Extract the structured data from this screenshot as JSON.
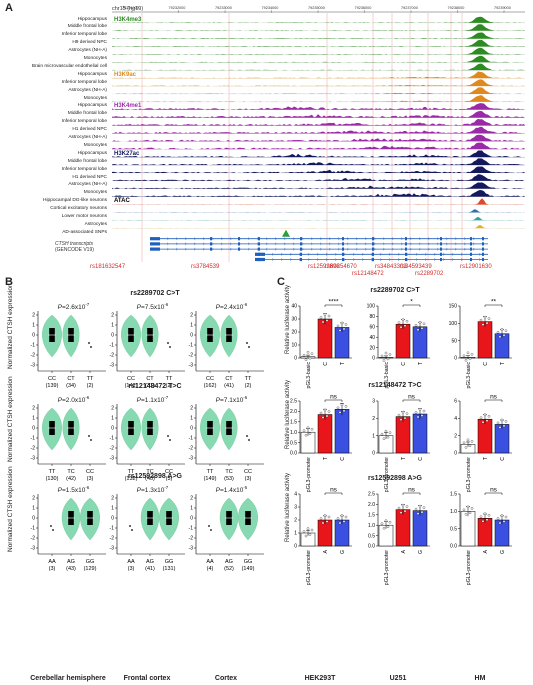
{
  "panelA": {
    "letter": "A",
    "locus": "chr15 (hg19)",
    "coords": [
      "79231000",
      "79232000",
      "79233000",
      "79234000",
      "79235000",
      "79236000",
      "79237000",
      "79238000",
      "79239000"
    ],
    "marks": [
      {
        "name": "H3K4me3",
        "color": "#2e8b22",
        "rows": [
          "Hippocampus",
          "Middle frontal lobe",
          "Inferior temporal lobe",
          "H9 derived NPC",
          "Astrocytes (NH-A)",
          "Monocytes",
          "Brain microvascular endothelial cell"
        ]
      },
      {
        "name": "H3K9ac",
        "color": "#e08a1e",
        "rows": [
          "Hippocampus",
          "Inferior temporal lobe",
          "Astrocytes (NH-A)",
          "Monocytes"
        ]
      },
      {
        "name": "H3K4me1",
        "color": "#9b2aa6",
        "rows": [
          "Hippocampus",
          "Middle frontal lobe",
          "Inferior temporal lobe",
          "H1 derived NPC",
          "Astrocytes (NH-A)",
          "Monocytes"
        ]
      },
      {
        "name": "H3K27ac",
        "color": "#14195e",
        "rows": [
          "Hippocampus",
          "Middle frontal lobe",
          "Inferior temporal lobe",
          "H1 derived NPC",
          "Astrocytes (NH-A)",
          "Monocytes"
        ]
      },
      {
        "name": "ATAC",
        "color": "#000000",
        "rows": [
          "Hippocampal DG-like neurons",
          "Cortical excitatory neurons",
          "Lower motor neurons",
          "Astrocytes"
        ]
      }
    ],
    "atac_colors": [
      "#e04a2a",
      "#2f6fb8",
      "#2aa8a0",
      "#e8b020"
    ],
    "snp_track": "AD-associated SNPs",
    "transcripts_label": [
      "CTSH transcripts",
      "(GENCODE V19)"
    ],
    "snps_row1": [
      "rs181632547",
      "rs3784539",
      "rs12592898",
      "rs60254670",
      "rs34843303",
      "rs34593439",
      "rs12901630"
    ],
    "snps_row2": [
      "rs12148472",
      "rs2289702"
    ]
  },
  "panelB": {
    "letter": "B",
    "ylabel": "Normalized CTSH expression",
    "columns": [
      "Cerebellar hemisphere",
      "Frontal cortex",
      "Cortex"
    ],
    "rows": [
      {
        "title": "rs2289702 C>T",
        "pvals": [
          "P=2.6x10",
          "P=7.5x10",
          "P=2.4x10"
        ],
        "exps": [
          "-7",
          "-6",
          "-6"
        ],
        "genotypes": [
          [
            "CC",
            "CT",
            "TT"
          ],
          [
            "CC",
            "CT",
            "TT"
          ],
          [
            "CC",
            "CT",
            "TT"
          ]
        ],
        "counts": [
          [
            "(139)",
            "(34)",
            "(2)"
          ],
          [
            "(142)",
            "(31)",
            "(2)"
          ],
          [
            "(162)",
            "(41)",
            "(2)"
          ]
        ]
      },
      {
        "title": "rs12148472 T>C",
        "pvals": [
          "P=2.0x10",
          "P=1.1x10",
          "P=7.1x10"
        ],
        "exps": [
          "-6",
          "-7",
          "-6"
        ],
        "genotypes": [
          [
            "TT",
            "TC",
            "CC"
          ],
          [
            "TT",
            "TC",
            "CC"
          ],
          [
            "TT",
            "TC",
            "CC"
          ]
        ],
        "counts": [
          [
            "(130)",
            "(42)",
            "(3)"
          ],
          [
            "(132)",
            "(40)",
            "(3)"
          ],
          [
            "(149)",
            "(53)",
            "(3)"
          ]
        ]
      },
      {
        "title": "rs12592898 A>G",
        "pvals": [
          "P=1.5x10",
          "P=1.3x10",
          "P=1.4x10"
        ],
        "exps": [
          "-6",
          "-7",
          "-5"
        ],
        "genotypes": [
          [
            "AA",
            "AG",
            "GG"
          ],
          [
            "AA",
            "AG",
            "GG"
          ],
          [
            "AA",
            "AG",
            "GG"
          ]
        ],
        "counts": [
          [
            "(3)",
            "(43)",
            "(129)"
          ],
          [
            "(3)",
            "(41)",
            "(131)"
          ],
          [
            "(4)",
            "(52)",
            "(149)"
          ]
        ]
      }
    ],
    "yticks": [
      "2",
      "1",
      "0",
      "-1",
      "-2",
      "-3"
    ]
  },
  "panelC": {
    "letter": "C",
    "ylabel": "Relative luciferase activity",
    "columns": [
      "HEK293T",
      "U251",
      "HM"
    ],
    "colors": {
      "control": "#ffffff",
      "ref": "#e8161b",
      "alt": "#3b4fe0"
    },
    "rows": [
      {
        "title": "rs2289702 C>T",
        "labels": [
          "pGL3-basic",
          "C",
          "T"
        ],
        "yticks": [
          [
            "40",
            "30",
            "20",
            "10",
            "0"
          ],
          [
            "100",
            "80",
            "60",
            "40",
            "20",
            "0"
          ],
          [
            "150",
            "100",
            "50",
            "0"
          ]
        ],
        "sig": [
          "****",
          "*",
          "**"
        ],
        "chart_data": {
          "type": "bar",
          "categories": [
            "pGL3-basic",
            "C",
            "T"
          ],
          "series": [
            {
              "name": "HEK293T",
              "values": [
                1,
                30,
                23.5
              ]
            },
            {
              "name": "U251",
              "values": [
                1,
                65,
                60
              ]
            },
            {
              "name": "HM",
              "values": [
                2,
                105,
                70
              ]
            }
          ]
        }
      },
      {
        "title": "rs12148472 T>C",
        "labels": [
          "pGL3-promoter",
          "T",
          "C"
        ],
        "yticks": [
          [
            "2.5",
            "2.0",
            "1.5",
            "1.0",
            "0.5",
            "0.0"
          ],
          [
            "3",
            "2",
            "1",
            "0"
          ],
          [
            "6",
            "4",
            "2",
            "0"
          ]
        ],
        "sig": [
          "ns",
          "ns",
          "ns"
        ],
        "chart_data": {
          "type": "bar",
          "categories": [
            "pGL3-promoter",
            "T",
            "C"
          ],
          "series": [
            {
              "name": "HEK293T",
              "values": [
                1.0,
                1.85,
                2.1
              ]
            },
            {
              "name": "U251",
              "values": [
                1.0,
                2.1,
                2.25
              ]
            },
            {
              "name": "HM",
              "values": [
                1.0,
                3.9,
                3.3
              ]
            }
          ]
        }
      },
      {
        "title": "rs12592898 A>G",
        "labels": [
          "pGL3-promoter",
          "A",
          "G"
        ],
        "yticks": [
          [
            "4",
            "3",
            "2",
            "1",
            "0"
          ],
          [
            "2.5",
            "2.0",
            "1.5",
            "1.0",
            "0.5",
            "0.0"
          ],
          [
            "1.5",
            "1.0",
            "0.5",
            "0.0"
          ]
        ],
        "sig": [
          "ns",
          "ns",
          "ns"
        ],
        "chart_data": {
          "type": "bar",
          "categories": [
            "pGL3-promoter",
            "A",
            "G"
          ],
          "series": [
            {
              "name": "HEK293T",
              "values": [
                1.0,
                2.0,
                2.0
              ]
            },
            {
              "name": "U251",
              "values": [
                1.0,
                1.75,
                1.7
              ]
            },
            {
              "name": "HM",
              "values": [
                1.0,
                0.8,
                0.75
              ]
            }
          ]
        }
      }
    ]
  }
}
